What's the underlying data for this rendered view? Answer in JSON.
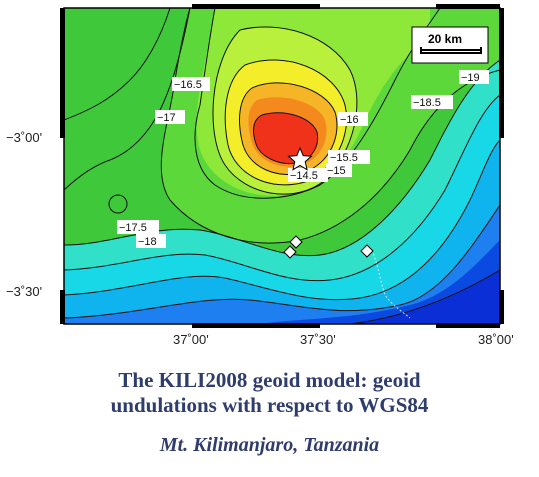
{
  "map": {
    "y_tick_labels": [
      "−3˚00'",
      "−3˚30'"
    ],
    "x_tick_labels": [
      "37˚00'",
      "37˚30'",
      "38˚00'"
    ],
    "scale_bar_label": "20 km",
    "contour_labels": [
      "−16.5",
      "−17",
      "−16",
      "−15.5",
      "−14.5",
      "−15",
      "−17.5",
      "−18",
      "−18.5",
      "−19"
    ],
    "summit_marker": "star",
    "station_markers": "diamond",
    "colors": {
      "ocean_blue": "#0a2fd6",
      "cyan": "#18d8e8",
      "green": "#3ec83a",
      "light_green": "#9af23a",
      "yellow": "#f4ee2a",
      "orange": "#f49a1e",
      "red": "#f0321a",
      "frame": "#000000"
    }
  },
  "caption": {
    "title_line1": "The KILI2008 geoid model: geoid",
    "title_line2": "undulations with respect to WGS84",
    "subtitle": "Mt. Kilimanjaro, Tanzania"
  }
}
